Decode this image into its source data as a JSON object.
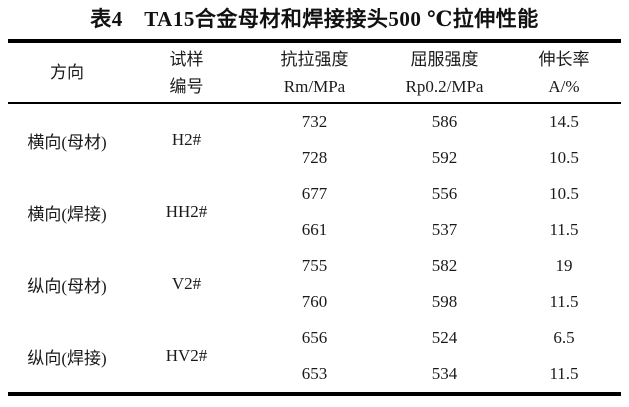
{
  "table": {
    "title": "表4　TA15合金母材和焊接接头500 ℃拉伸性能",
    "header": {
      "direction": "方向",
      "sample_line1": "试样",
      "sample_line2": "编号",
      "tensile_line1": "抗拉强度",
      "tensile_line2": "Rm/MPa",
      "yield_line1": "屈服强度",
      "yield_line2": "Rp0.2/MPa",
      "elongation_line1": "伸长率",
      "elongation_line2": "A/%"
    },
    "rows": [
      {
        "direction": "横向(母材)",
        "sample": "H2#",
        "rm": [
          "732",
          "728"
        ],
        "rp": [
          "586",
          "592"
        ],
        "a": [
          "14.5",
          "10.5"
        ]
      },
      {
        "direction": "横向(焊接)",
        "sample": "HH2#",
        "rm": [
          "677",
          "661"
        ],
        "rp": [
          "556",
          "537"
        ],
        "a": [
          "10.5",
          "11.5"
        ]
      },
      {
        "direction": "纵向(母材)",
        "sample": "V2#",
        "rm": [
          "755",
          "760"
        ],
        "rp": [
          "582",
          "598"
        ],
        "a": [
          "19",
          "11.5"
        ]
      },
      {
        "direction": "纵向(焊接)",
        "sample": "HV2#",
        "rm": [
          "656",
          "653"
        ],
        "rp": [
          "524",
          "534"
        ],
        "a": [
          "6.5",
          "11.5"
        ]
      }
    ],
    "colors": {
      "text": "#1a1a1a",
      "rule": "#000000",
      "background": "#ffffff"
    }
  }
}
